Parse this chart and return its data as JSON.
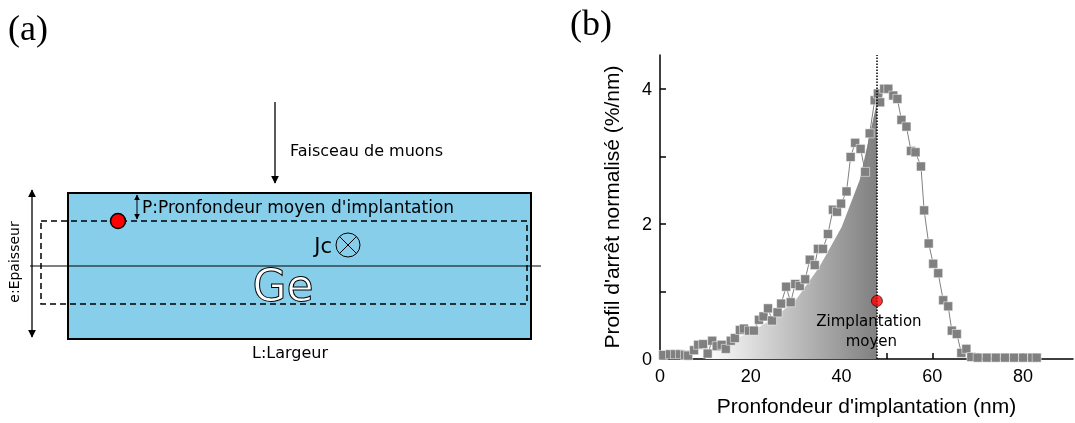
{
  "chart_data": [
    {
      "type": "other",
      "title": "(a)",
      "annotations": [
        "Faisceau de muons",
        "P:Pronfondeur moyen d'implantation",
        "Jc",
        "Ge",
        "e:Epaisseur",
        "L:Largeur"
      ]
    },
    {
      "type": "line",
      "title": "(b)",
      "xlabel": "Pronfondeur d'implantation (nm)",
      "ylabel": "Profil d'arrêt normalisé (%/nm)",
      "xlim": [
        0,
        91
      ],
      "xticks": [
        0,
        {
          "value": 10,
          "label": null
        },
        20,
        {
          "value": 30,
          "label": null
        },
        40,
        {
          "value": 50,
          "label": null
        },
        60,
        {
          "value": 70,
          "label": null
        },
        80
      ],
      "ylim": [
        0,
        4.5
      ],
      "yticks": [
        0,
        {
          "value": 1,
          "label": null
        },
        2,
        {
          "value": 3,
          "label": null
        },
        4
      ],
      "series": [
        {
          "type": "area",
          "color": "#808080",
          "x": [
            10,
            15,
            20,
            25,
            30,
            35,
            40,
            44,
            47.8
          ],
          "values": [
            0.15,
            0.25,
            0.4,
            0.6,
            0.88,
            1.35,
            1.95,
            2.65,
            3.8
          ]
        },
        {
          "type": "line",
          "color": "#808080",
          "marker": "square",
          "x": [
            0.7,
            2.2,
            3.3,
            4.4,
            5.5,
            6.2,
            7.5,
            8.4,
            9.5,
            10.5,
            11.5,
            12.5,
            13.6,
            14.5,
            15.6,
            16.5,
            17.6,
            18.5,
            19.6,
            20.7,
            21.8,
            22.8,
            23.8,
            24.7,
            25.9,
            26.7,
            27.8,
            28.8,
            29.8,
            30.8,
            32.0,
            33.0,
            34.1,
            34.8,
            35.9,
            37.0,
            38.1,
            39.0,
            39.9,
            41.1,
            42.0,
            43.0,
            44.2,
            45.2,
            46.2,
            47.3,
            48.0,
            48.5,
            49.4,
            50.3,
            51.4,
            52.3,
            53.2,
            54.3,
            55.3,
            56.3,
            57.5,
            58.2,
            59.2,
            60.2,
            61.3,
            62.4,
            63.5,
            64.3,
            65.4,
            66.4,
            67.5,
            68.6,
            70,
            72,
            74,
            76,
            78,
            80,
            82,
            83
          ],
          "values": [
            0.06,
            0.07,
            0.07,
            0.07,
            0.06,
            0.05,
            0.13,
            0.21,
            0.22,
            0.08,
            0.27,
            0.19,
            0.21,
            0.15,
            0.27,
            0.31,
            0.43,
            0.45,
            0.42,
            0.42,
            0.58,
            0.63,
            0.75,
            0.57,
            0.69,
            0.82,
            1.07,
            0.84,
            1.11,
            1.08,
            1.18,
            1.47,
            1.39,
            1.63,
            1.63,
            1.85,
            2.21,
            2.18,
            2.3,
            2.48,
            2.99,
            3.2,
            3.11,
            2.77,
            3.34,
            3.83,
            3.93,
            3.8,
            4.0,
            4.0,
            3.9,
            3.85,
            3.54,
            3.44,
            3.08,
            3.06,
            2.85,
            2.2,
            1.71,
            1.41,
            1.27,
            0.87,
            0.78,
            0.42,
            0.37,
            0.09,
            0.15,
            0.03,
            0.02,
            0.02,
            0.02,
            0.02,
            0.02,
            0.02,
            0.02,
            0.02
          ]
        },
        {
          "type": "scatter",
          "color": "#ff0000",
          "marker": "circle",
          "x": [
            47.8
          ],
          "values": [
            0.86
          ]
        }
      ],
      "ref_lines": [
        {
          "axis": "x",
          "value": 47.8,
          "line_style": "dotted",
          "color": "#000000"
        }
      ],
      "annotations": [
        {
          "text": "Zimplantation moyen",
          "x": 47.8,
          "y": 0.86
        }
      ]
    }
  ]
}
